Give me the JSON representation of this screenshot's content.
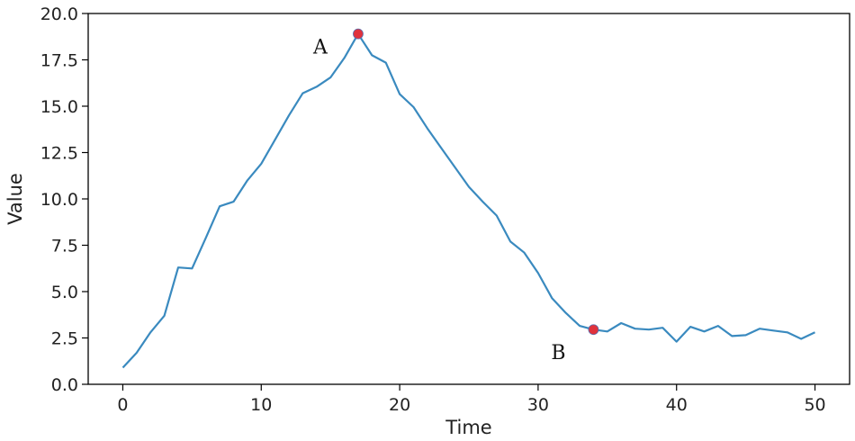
{
  "chart_data": {
    "type": "line",
    "title": "",
    "xlabel": "Time",
    "ylabel": "Value",
    "xlim": [
      -2.5,
      52.5
    ],
    "ylim": [
      0.0,
      20.0
    ],
    "xticks": [
      0,
      10,
      20,
      30,
      40,
      50
    ],
    "xtick_labels": [
      "0",
      "10",
      "20",
      "30",
      "40",
      "50"
    ],
    "yticks": [
      0.0,
      2.5,
      5.0,
      7.5,
      10.0,
      12.5,
      15.0,
      17.5,
      20.0
    ],
    "ytick_labels": [
      "0.0",
      "2.5",
      "5.0",
      "7.5",
      "10.0",
      "12.5",
      "15.0",
      "17.5",
      "20.0"
    ],
    "grid": false,
    "line_color": "#3a8abf",
    "marker_color": "#e0323c",
    "series": [
      {
        "x": [
          0,
          1,
          2,
          3,
          4,
          5,
          6,
          7,
          8,
          9,
          10,
          11,
          12,
          13,
          14,
          15,
          16,
          17,
          18,
          19,
          20,
          21,
          22,
          23,
          24,
          25,
          26,
          27,
          28,
          29,
          30,
          31,
          32,
          33,
          34,
          35,
          36,
          37,
          38,
          39,
          40,
          41,
          42,
          43,
          44,
          45,
          46,
          47,
          48,
          49,
          50
        ],
        "values": [
          0.9,
          1.7,
          2.8,
          3.7,
          6.3,
          6.25,
          7.9,
          9.6,
          9.85,
          11.0,
          11.9,
          13.2,
          14.5,
          15.7,
          16.05,
          16.55,
          17.6,
          18.9,
          17.75,
          17.35,
          15.65,
          14.95,
          13.8,
          12.75,
          11.7,
          10.65,
          9.85,
          9.1,
          7.7,
          7.1,
          6.0,
          4.65,
          3.85,
          3.15,
          2.95,
          2.85,
          3.3,
          3.0,
          2.95,
          3.05,
          2.3,
          3.1,
          2.85,
          3.15,
          2.6,
          2.65,
          3.0,
          2.9,
          2.8,
          2.45,
          2.8
        ]
      }
    ],
    "annotations": [
      {
        "label": "A",
        "x": 17,
        "y": 18.9
      },
      {
        "label": "B",
        "x": 34,
        "y": 2.95
      }
    ]
  }
}
